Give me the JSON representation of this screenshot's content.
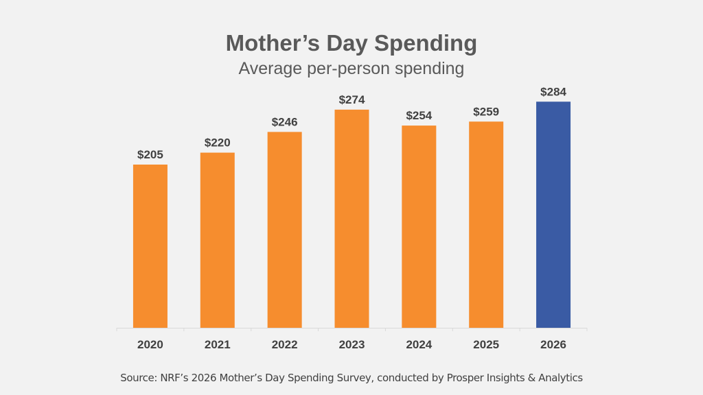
{
  "chart_data": {
    "type": "bar",
    "title": "Mother’s Day Spending",
    "subtitle": "Average per-person spending",
    "categories": [
      "2020",
      "2021",
      "2022",
      "2023",
      "2024",
      "2025",
      "2026"
    ],
    "values": [
      205,
      220,
      246,
      274,
      254,
      259,
      284
    ],
    "data_labels": [
      "$205",
      "$220",
      "$246",
      "$274",
      "$254",
      "$259",
      "$284"
    ],
    "highlight_index": 6,
    "colors": {
      "default": "#f68d2e",
      "highlight": "#3a5ba4"
    },
    "xlabel": "",
    "ylabel": "",
    "ylim": [
      0,
      300
    ],
    "grid": false,
    "legend": "none"
  },
  "source": "Source: NRF’s 2026 Mother’s Day Spending Survey, conducted by Prosper Insights & Analytics"
}
